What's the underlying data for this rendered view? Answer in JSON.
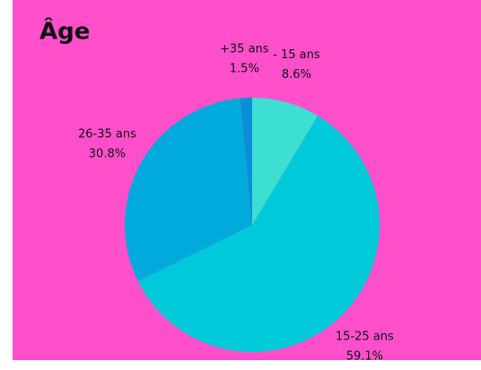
{
  "chart_data": {
    "type": "pie",
    "title": "Âge",
    "categories": [
      "- 15 ans",
      "15-25 ans",
      "26-35 ans",
      "+35 ans"
    ],
    "values": [
      8.6,
      59.1,
      30.8,
      1.5
    ],
    "value_labels": [
      "8.6%",
      "59.1%",
      "30.8%",
      "1.5%"
    ],
    "colors": [
      "#3ddfd2",
      "#00c9d9",
      "#00aadc",
      "#0b8ed8"
    ]
  }
}
